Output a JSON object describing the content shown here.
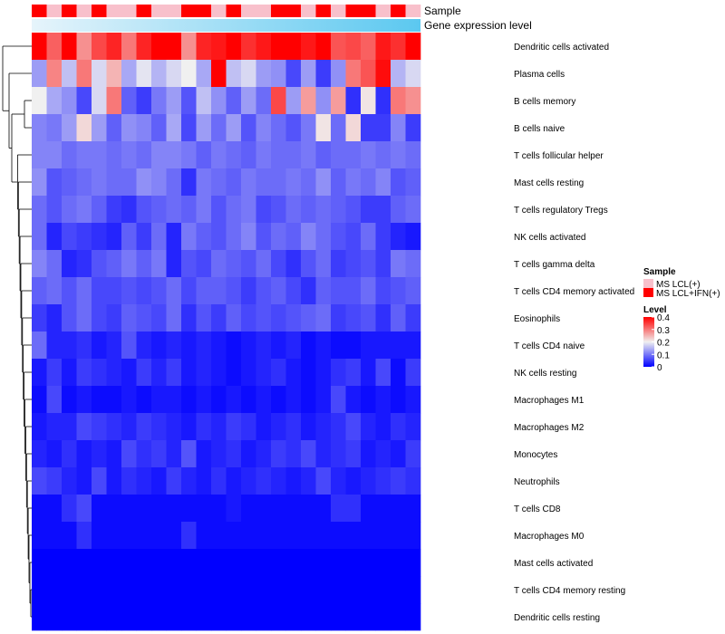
{
  "chart_data": {
    "type": "heatmap",
    "title": "",
    "annotations": {
      "sample_label": "Sample",
      "gene_expression_label": "Gene expression level"
    },
    "sample_groups": [
      "2",
      "1",
      "2",
      "1",
      "2",
      "1",
      "1",
      "2",
      "1",
      "1",
      "2",
      "2",
      "1",
      "2",
      "1",
      "1",
      "2",
      "2",
      "1",
      "2",
      "1",
      "2",
      "2",
      "1",
      "2",
      "1"
    ],
    "rows": [
      "Dendritic cells activated",
      "Plasma cells",
      "B cells memory",
      "B cells naive",
      "T cells follicular helper",
      "Mast cells resting",
      "T cells regulatory  Tregs",
      "NK cells activated",
      "T cells gamma delta",
      "T cells CD4 memory activated",
      "Eosinophils",
      "T cells CD4 naive",
      "NK cells resting",
      "Macrophages M1",
      "Macrophages M2",
      "Monocytes",
      "Neutrophils",
      "T cells CD8",
      "Macrophages M0",
      "Mast cells activated",
      "T cells CD4 memory resting",
      "Dendritic cells resting"
    ],
    "values": [
      [
        0.4,
        0.32,
        0.4,
        0.28,
        0.34,
        0.37,
        0.3,
        0.37,
        0.4,
        0.4,
        0.28,
        0.37,
        0.38,
        0.4,
        0.36,
        0.38,
        0.4,
        0.4,
        0.38,
        0.4,
        0.33,
        0.34,
        0.32,
        0.38,
        0.36,
        0.4
      ],
      [
        0.13,
        0.29,
        0.16,
        0.3,
        0.18,
        0.25,
        0.14,
        0.19,
        0.15,
        0.18,
        0.2,
        0.14,
        0.4,
        0.16,
        0.18,
        0.13,
        0.12,
        0.06,
        0.13,
        0.05,
        0.12,
        0.3,
        0.33,
        0.39,
        0.15,
        0.18
      ],
      [
        0.2,
        0.14,
        0.12,
        0.06,
        0.18,
        0.3,
        0.08,
        0.05,
        0.1,
        0.13,
        0.07,
        0.16,
        0.12,
        0.08,
        0.13,
        0.09,
        0.34,
        0.13,
        0.27,
        0.12,
        0.27,
        0.04,
        0.21,
        0.04,
        0.3,
        0.28
      ],
      [
        0.11,
        0.1,
        0.13,
        0.22,
        0.13,
        0.08,
        0.12,
        0.11,
        0.08,
        0.14,
        0.06,
        0.13,
        0.09,
        0.13,
        0.07,
        0.11,
        0.09,
        0.07,
        0.1,
        0.21,
        0.09,
        0.22,
        0.05,
        0.05,
        0.11,
        0.05
      ],
      [
        0.11,
        0.11,
        0.09,
        0.1,
        0.1,
        0.09,
        0.1,
        0.09,
        0.11,
        0.11,
        0.1,
        0.08,
        0.1,
        0.09,
        0.08,
        0.1,
        0.09,
        0.09,
        0.1,
        0.08,
        0.09,
        0.09,
        0.1,
        0.09,
        0.1,
        0.09
      ],
      [
        0.12,
        0.07,
        0.08,
        0.09,
        0.1,
        0.09,
        0.09,
        0.12,
        0.11,
        0.09,
        0.04,
        0.1,
        0.09,
        0.08,
        0.1,
        0.09,
        0.09,
        0.1,
        0.09,
        0.12,
        0.08,
        0.1,
        0.09,
        0.11,
        0.07,
        0.08
      ],
      [
        0.09,
        0.07,
        0.09,
        0.1,
        0.08,
        0.05,
        0.04,
        0.07,
        0.08,
        0.09,
        0.08,
        0.1,
        0.07,
        0.09,
        0.1,
        0.06,
        0.07,
        0.09,
        0.08,
        0.09,
        0.08,
        0.07,
        0.05,
        0.05,
        0.08,
        0.09
      ],
      [
        0.09,
        0.03,
        0.06,
        0.05,
        0.04,
        0.03,
        0.08,
        0.05,
        0.09,
        0.03,
        0.1,
        0.08,
        0.07,
        0.09,
        0.11,
        0.07,
        0.09,
        0.08,
        0.11,
        0.09,
        0.07,
        0.06,
        0.09,
        0.05,
        0.03,
        0.02
      ],
      [
        0.11,
        0.09,
        0.03,
        0.04,
        0.07,
        0.08,
        0.1,
        0.08,
        0.1,
        0.03,
        0.07,
        0.06,
        0.09,
        0.08,
        0.07,
        0.09,
        0.06,
        0.04,
        0.07,
        0.09,
        0.05,
        0.06,
        0.07,
        0.05,
        0.1,
        0.09
      ],
      [
        0.08,
        0.09,
        0.07,
        0.09,
        0.06,
        0.06,
        0.07,
        0.06,
        0.07,
        0.09,
        0.06,
        0.08,
        0.08,
        0.07,
        0.05,
        0.07,
        0.08,
        0.06,
        0.04,
        0.08,
        0.07,
        0.07,
        0.09,
        0.06,
        0.07,
        0.08
      ],
      [
        0.05,
        0.03,
        0.07,
        0.09,
        0.06,
        0.05,
        0.08,
        0.07,
        0.06,
        0.09,
        0.04,
        0.07,
        0.05,
        0.08,
        0.06,
        0.07,
        0.06,
        0.07,
        0.08,
        0.09,
        0.05,
        0.06,
        0.07,
        0.04,
        0.08,
        0.05
      ],
      [
        0.09,
        0.03,
        0.03,
        0.04,
        0.02,
        0.03,
        0.07,
        0.03,
        0.02,
        0.03,
        0.02,
        0.03,
        0.02,
        0.01,
        0.02,
        0.03,
        0.02,
        0.03,
        0.01,
        0.02,
        0.01,
        0.01,
        0.02,
        0.02,
        0.02,
        0.02
      ],
      [
        0.02,
        0.05,
        0.02,
        0.05,
        0.04,
        0.03,
        0.02,
        0.05,
        0.03,
        0.05,
        0.02,
        0.03,
        0.02,
        0.01,
        0.02,
        0.03,
        0.04,
        0.02,
        0.01,
        0.02,
        0.04,
        0.05,
        0.02,
        0.06,
        0.01,
        0.05
      ],
      [
        0.01,
        0.06,
        0.01,
        0.02,
        0.01,
        0.01,
        0.02,
        0.01,
        0.02,
        0.02,
        0.01,
        0.02,
        0.01,
        0.02,
        0.01,
        0.02,
        0.01,
        0.02,
        0.01,
        0.02,
        0.06,
        0.02,
        0.01,
        0.02,
        0.01,
        0.02
      ],
      [
        0.02,
        0.03,
        0.03,
        0.06,
        0.05,
        0.04,
        0.03,
        0.05,
        0.04,
        0.03,
        0.02,
        0.04,
        0.03,
        0.05,
        0.04,
        0.02,
        0.03,
        0.04,
        0.02,
        0.03,
        0.04,
        0.06,
        0.03,
        0.02,
        0.04,
        0.03
      ],
      [
        0.03,
        0.02,
        0.04,
        0.02,
        0.03,
        0.02,
        0.06,
        0.04,
        0.05,
        0.03,
        0.07,
        0.02,
        0.03,
        0.04,
        0.02,
        0.03,
        0.05,
        0.04,
        0.06,
        0.03,
        0.04,
        0.05,
        0.02,
        0.03,
        0.02,
        0.05
      ],
      [
        0.06,
        0.05,
        0.03,
        0.02,
        0.06,
        0.02,
        0.04,
        0.03,
        0.02,
        0.05,
        0.03,
        0.02,
        0.04,
        0.02,
        0.03,
        0.04,
        0.03,
        0.02,
        0.03,
        0.06,
        0.03,
        0.02,
        0.03,
        0.04,
        0.05,
        0.04
      ],
      [
        0.01,
        0.01,
        0.04,
        0.06,
        0.01,
        0.01,
        0.01,
        0.01,
        0.01,
        0.01,
        0.01,
        0.01,
        0.01,
        0.02,
        0.01,
        0.01,
        0.01,
        0.01,
        0.01,
        0.01,
        0.04,
        0.04,
        0.01,
        0.01,
        0.01,
        0.01
      ],
      [
        0.01,
        0.01,
        0.01,
        0.04,
        0.01,
        0.01,
        0.01,
        0.01,
        0.01,
        0.01,
        0.04,
        0.01,
        0.01,
        0.01,
        0.01,
        0.01,
        0.01,
        0.01,
        0.01,
        0.01,
        0.01,
        0.01,
        0.01,
        0.01,
        0.01,
        0.01
      ],
      [
        0.0,
        0.0,
        0.0,
        0.0,
        0.0,
        0.0,
        0.0,
        0.0,
        0.0,
        0.0,
        0.0,
        0.0,
        0.0,
        0.0,
        0.0,
        0.0,
        0.0,
        0.0,
        0.0,
        0.0,
        0.0,
        0.0,
        0.0,
        0.0,
        0.0,
        0.0
      ],
      [
        0.0,
        0.0,
        0.0,
        0.0,
        0.0,
        0.0,
        0.0,
        0.0,
        0.0,
        0.0,
        0.0,
        0.0,
        0.0,
        0.0,
        0.0,
        0.0,
        0.0,
        0.0,
        0.0,
        0.0,
        0.0,
        0.0,
        0.0,
        0.0,
        0.0,
        0.0
      ],
      [
        0.0,
        0.0,
        0.0,
        0.0,
        0.0,
        0.0,
        0.0,
        0.0,
        0.0,
        0.0,
        0.0,
        0.0,
        0.0,
        0.0,
        0.0,
        0.0,
        0.0,
        0.0,
        0.0,
        0.0,
        0.0,
        0.0,
        0.0,
        0.0,
        0.0,
        0.0
      ]
    ],
    "color_scale": {
      "min": 0,
      "mid": 0.2,
      "max": 0.4,
      "low_color": "#0000ff",
      "mid_color": "#f0f0f0",
      "high_color": "#ff0000"
    },
    "sample_legend": {
      "title": "Sample",
      "entries": [
        {
          "key": "1",
          "label": "MS LCL(+)",
          "color": "#f8c0cb"
        },
        {
          "key": "2",
          "label": "MS LCL+IFN(+)",
          "color": "#ff0000"
        }
      ]
    },
    "level_legend": {
      "title": "Level",
      "ticks": [
        0.4,
        0.3,
        0.2,
        0.1,
        0
      ],
      "tick_labels": [
        "0.4",
        "0.3",
        "0.2",
        "0.1",
        "0"
      ]
    },
    "gene_expression_gradient": {
      "from": "#e6f4fb",
      "to": "#5bc8f0"
    },
    "row_dendrogram": true
  }
}
